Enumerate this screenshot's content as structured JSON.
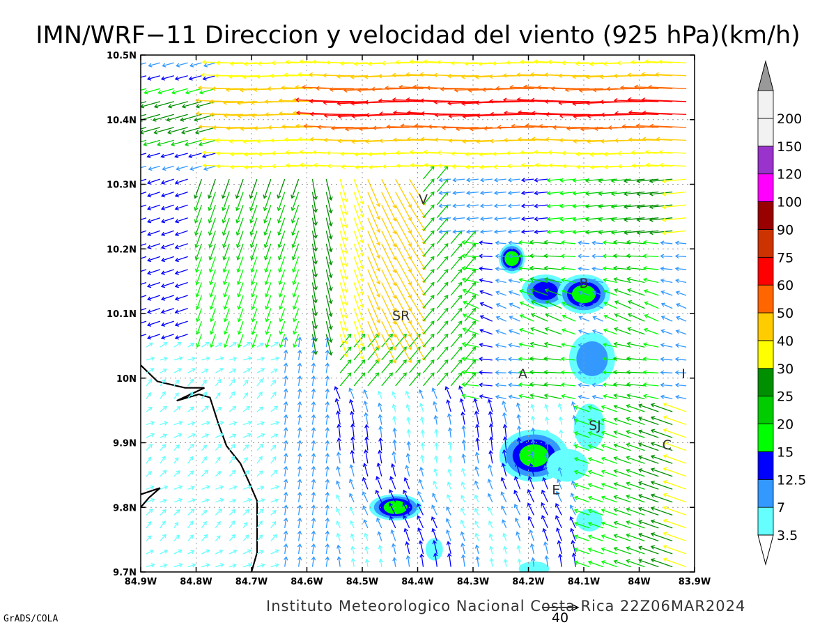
{
  "title": "IMN/WRF−11 Direccion y velocidad del viento (925 hPa)(km/h)",
  "footer": "Instituto Meteorologico Nacional Costa Rica 22Z06MAR2024",
  "credit": "GrADS/COLA",
  "reference_vector": "40",
  "map": {
    "lon_range": [
      -84.9,
      -83.9
    ],
    "lat_range": [
      9.7,
      10.5
    ],
    "x_ticks": [
      "84.9W",
      "84.8W",
      "84.7W",
      "84.6W",
      "84.5W",
      "84.4W",
      "84.3W",
      "84.2W",
      "84.1W",
      "84W",
      "83.9W"
    ],
    "y_ticks": [
      "9.7N",
      "9.8N",
      "9.9N",
      "10N",
      "10.1N",
      "10.2N",
      "10.3N",
      "10.4N",
      "10.5N"
    ],
    "grid": true,
    "places": [
      {
        "label": "V",
        "lon": -84.39,
        "lat": 10.27
      },
      {
        "label": "SR",
        "lon": -84.43,
        "lat": 10.09
      },
      {
        "label": "B",
        "lon": -84.1,
        "lat": 10.14
      },
      {
        "label": "A",
        "lon": -84.21,
        "lat": 10.0
      },
      {
        "label": "I",
        "lon": -83.92,
        "lat": 10.0
      },
      {
        "label": "SJ",
        "lon": -84.08,
        "lat": 9.92
      },
      {
        "label": "C",
        "lon": -83.95,
        "lat": 9.89
      },
      {
        "label": "E",
        "lon": -84.15,
        "lat": 9.82
      }
    ],
    "coastline": [
      [
        [
          -84.9,
          10.02
        ],
        [
          -84.87,
          9.995
        ],
        [
          -84.82,
          9.985
        ],
        [
          -84.785,
          9.985
        ],
        [
          -84.835,
          9.965
        ],
        [
          -84.795,
          9.975
        ],
        [
          -84.775,
          9.97
        ],
        [
          -84.76,
          9.93
        ],
        [
          -84.745,
          9.895
        ],
        [
          -84.72,
          9.868
        ],
        [
          -84.705,
          9.84
        ],
        [
          -84.69,
          9.81
        ],
        [
          -84.69,
          9.77
        ],
        [
          -84.69,
          9.73
        ],
        [
          -84.7,
          9.7
        ]
      ],
      [
        [
          -84.9,
          9.8
        ],
        [
          -84.885,
          9.815
        ],
        [
          -84.865,
          9.83
        ],
        [
          -84.9,
          9.82
        ]
      ]
    ]
  },
  "colorbar": {
    "levels": [
      "3.5",
      "7",
      "12.5",
      "15",
      "20",
      "25",
      "30",
      "40",
      "50",
      "60",
      "75",
      "90",
      "100",
      "120",
      "150",
      "200"
    ],
    "colors": [
      "#66ffff",
      "#3399ff",
      "#0000ff",
      "#00ff00",
      "#00cc00",
      "#008f00",
      "#ffff00",
      "#ffcc00",
      "#ff6600",
      "#ff0000",
      "#cc3300",
      "#990000",
      "#ff00ff",
      "#9933cc",
      "#f2f2f2",
      "#999999"
    ]
  },
  "chart_data": {
    "type": "heatmap",
    "title": "IMN/WRF−11 Direccion y velocidad del viento (925 hPa)(km/h)",
    "xlabel": "",
    "ylabel": "",
    "x_range": [
      -84.9,
      -83.9
    ],
    "y_range": [
      9.7,
      10.5
    ],
    "contour_levels": [
      3.5,
      7,
      12.5,
      15,
      20,
      25,
      30,
      40,
      50,
      60,
      75,
      90,
      100,
      120,
      150,
      200
    ],
    "shaded_regions": [
      {
        "lon": -84.23,
        "lat": 10.185,
        "speed": 17,
        "rx": 0.016,
        "ry": 0.018
      },
      {
        "lon": -84.17,
        "lat": 10.135,
        "speed": 13,
        "rx": 0.035,
        "ry": 0.02
      },
      {
        "lon": -84.1,
        "lat": 10.13,
        "speed": 19,
        "rx": 0.04,
        "ry": 0.025
      },
      {
        "lon": -84.085,
        "lat": 10.03,
        "speed": 8,
        "rx": 0.034,
        "ry": 0.035
      },
      {
        "lon": -84.09,
        "lat": 9.925,
        "speed": 5,
        "rx": 0.02,
        "ry": 0.03
      },
      {
        "lon": -84.19,
        "lat": 9.88,
        "speed": 18,
        "rx": 0.055,
        "ry": 0.035
      },
      {
        "lon": -84.13,
        "lat": 9.865,
        "speed": 6,
        "rx": 0.03,
        "ry": 0.02
      },
      {
        "lon": -84.44,
        "lat": 9.8,
        "speed": 16,
        "rx": 0.04,
        "ry": 0.015
      },
      {
        "lon": -84.09,
        "lat": 9.78,
        "speed": 5,
        "rx": 0.016,
        "ry": 0.012
      },
      {
        "lon": -84.37,
        "lat": 9.735,
        "speed": 4,
        "rx": 0.008,
        "ry": 0.012
      },
      {
        "lon": -84.19,
        "lat": 9.705,
        "speed": 4,
        "rx": 0.02,
        "ry": 0.006
      }
    ],
    "wind_vectors": {
      "lon_start": -84.9,
      "lon_step": 0.025,
      "lon_count": 40,
      "lat_start": 9.7,
      "lat_step": 0.02,
      "lat_count": 40,
      "flow_regimes": [
        {
          "region": "north (lat > 10.33)",
          "direction": "from east, toward west",
          "speed_kmh": [
            30,
            75
          ]
        },
        {
          "region": "northwest (lon < -84.65, lat 10.1–10.33)",
          "direction": "toward south-southwest",
          "speed_kmh": [
            15,
            30
          ]
        },
        {
          "region": "San Ramon (SR) gap",
          "direction": "toward south-southeast",
          "speed_kmh": [
            30,
            50
          ]
        },
        {
          "region": "southwest Pacific side (lat < 10.05, lon < -84.55)",
          "direction": "toward northeast / north",
          "speed_kmh": [
            3,
            10
          ]
        },
        {
          "region": "central valley",
          "direction": "toward northwest",
          "speed_kmh": [
            12,
            25
          ]
        },
        {
          "region": "southeast (lon > -84.1, lat < 9.95)",
          "direction": "toward west-northwest",
          "speed_kmh": [
            15,
            35
          ]
        }
      ]
    }
  }
}
